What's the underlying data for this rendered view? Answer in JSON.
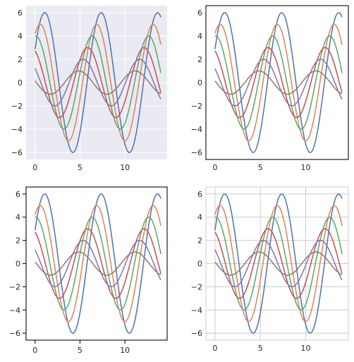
{
  "figure": {
    "panel_styles": [
      "darkgrid",
      "white",
      "ticks",
      "whitegrid"
    ]
  },
  "colors": {
    "series": [
      "#4c72b0",
      "#dd8452",
      "#55a868",
      "#c44e52",
      "#8172b3",
      "#937860"
    ],
    "darkgrid_face": "#eaeaf2",
    "grid_light": "#ffffff",
    "grid_dark": "#cccccc",
    "spine_dark": "#262626",
    "text": "#262626"
  },
  "chart_data": [
    {
      "type": "line",
      "style": "darkgrid",
      "title": "",
      "xlabel": "",
      "ylabel": "",
      "xlim": [
        -1,
        14.7
      ],
      "ylim": [
        -6.6,
        6.6
      ],
      "xticks": [
        0,
        5,
        10
      ],
      "yticks": [
        -6,
        -4,
        -2,
        0,
        2,
        4,
        6
      ],
      "grid": true,
      "series": [
        {
          "formula": "sin(x + 0.5) * 6",
          "amplitude": 6,
          "phase": 0.5
        },
        {
          "formula": "sin(x + 1.0) * 5",
          "amplitude": 5,
          "phase": 1.0
        },
        {
          "formula": "sin(x + 1.5) * 4",
          "amplitude": 4,
          "phase": 1.5
        },
        {
          "formula": "sin(x + 2.0) * 3",
          "amplitude": 3,
          "phase": 2.0
        },
        {
          "formula": "sin(x + 2.5) * 2",
          "amplitude": 2,
          "phase": 2.5
        },
        {
          "formula": "sin(x + 3.0) * 1",
          "amplitude": 1,
          "phase": 3.0
        }
      ],
      "x_range": [
        0,
        14
      ]
    },
    {
      "type": "line",
      "style": "white",
      "title": "",
      "xlabel": "",
      "ylabel": "",
      "xlim": [
        -1,
        14.7
      ],
      "ylim": [
        -6.6,
        6.6
      ],
      "xticks": [
        0,
        5,
        10
      ],
      "yticks": [
        -6,
        -4,
        -2,
        0,
        2,
        4,
        6
      ],
      "grid": false,
      "series": [
        {
          "formula": "sin(x + 0.5) * 6",
          "amplitude": 6,
          "phase": 0.5
        },
        {
          "formula": "sin(x + 1.0) * 5",
          "amplitude": 5,
          "phase": 1.0
        },
        {
          "formula": "sin(x + 1.5) * 4",
          "amplitude": 4,
          "phase": 1.5
        },
        {
          "formula": "sin(x + 2.0) * 3",
          "amplitude": 3,
          "phase": 2.0
        },
        {
          "formula": "sin(x + 2.5) * 2",
          "amplitude": 2,
          "phase": 2.5
        },
        {
          "formula": "sin(x + 3.0) * 1",
          "amplitude": 1,
          "phase": 3.0
        }
      ],
      "x_range": [
        0,
        14
      ]
    },
    {
      "type": "line",
      "style": "ticks",
      "title": "",
      "xlabel": "",
      "ylabel": "",
      "xlim": [
        -1,
        14.7
      ],
      "ylim": [
        -6.6,
        6.6
      ],
      "xticks": [
        0,
        5,
        10
      ],
      "yticks": [
        -6,
        -4,
        -2,
        0,
        2,
        4,
        6
      ],
      "grid": false,
      "series": [
        {
          "formula": "sin(x + 0.5) * 6",
          "amplitude": 6,
          "phase": 0.5
        },
        {
          "formula": "sin(x + 1.0) * 5",
          "amplitude": 5,
          "phase": 1.0
        },
        {
          "formula": "sin(x + 1.5) * 4",
          "amplitude": 4,
          "phase": 1.5
        },
        {
          "formula": "sin(x + 2.0) * 3",
          "amplitude": 3,
          "phase": 2.0
        },
        {
          "formula": "sin(x + 2.5) * 2",
          "amplitude": 2,
          "phase": 2.5
        },
        {
          "formula": "sin(x + 3.0) * 1",
          "amplitude": 1,
          "phase": 3.0
        }
      ],
      "x_range": [
        0,
        14
      ]
    },
    {
      "type": "line",
      "style": "whitegrid",
      "title": "",
      "xlabel": "",
      "ylabel": "",
      "xlim": [
        -1,
        14.7
      ],
      "ylim": [
        -6.6,
        6.6
      ],
      "xticks": [
        0,
        5,
        10
      ],
      "yticks": [
        -6,
        -4,
        -2,
        0,
        2,
        4,
        6
      ],
      "grid": true,
      "series": [
        {
          "formula": "sin(x + 0.5) * 6",
          "amplitude": 6,
          "phase": 0.5
        },
        {
          "formula": "sin(x + 1.0) * 5",
          "amplitude": 5,
          "phase": 1.0
        },
        {
          "formula": "sin(x + 1.5) * 4",
          "amplitude": 4,
          "phase": 1.5
        },
        {
          "formula": "sin(x + 2.0) * 3",
          "amplitude": 3,
          "phase": 2.0
        },
        {
          "formula": "sin(x + 2.5) * 2",
          "amplitude": 2,
          "phase": 2.5
        },
        {
          "formula": "sin(x + 3.0) * 1",
          "amplitude": 1,
          "phase": 3.0
        }
      ],
      "x_range": [
        0,
        14
      ]
    }
  ]
}
